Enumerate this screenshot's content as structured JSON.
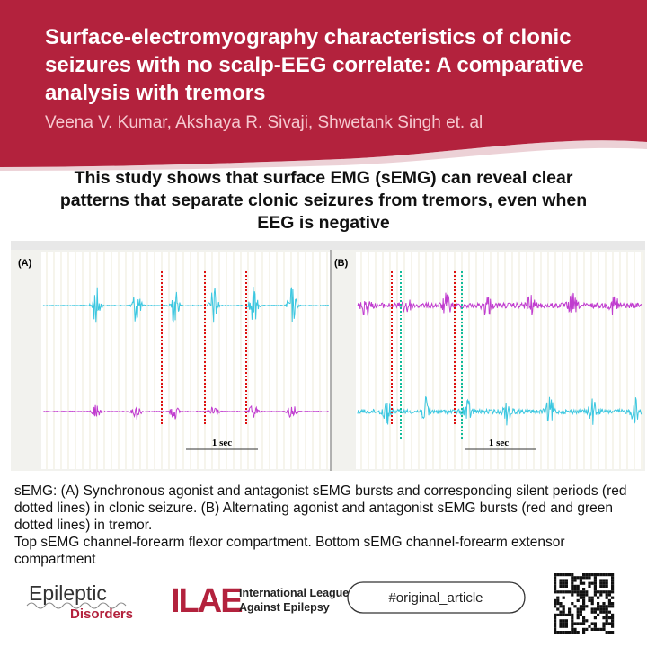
{
  "header": {
    "title": "Surface-electromyography characteristics of clonic seizures with no scalp-EEG correlate: A comparative analysis with tremors",
    "authors": "Veena V. Kumar, Akshaya R. Sivaji, Shwetank Singh et. al"
  },
  "summary": "This study shows that surface EMG (sEMG) can reveal clear patterns that separate clonic seizures from tremors, even when EEG is negative",
  "figure": {
    "panel_a_label": "(A)",
    "panel_b_label": "(B)",
    "scale_a": "1 sec",
    "scale_b": "1 sec"
  },
  "caption": [
    "sEMG: (A) Synchronous agonist and antagonist sEMG bursts and corresponding silent periods (red dotted lines) in clonic seizure.  (B) Alternating agonist and antagonist sEMG bursts (red and green dotted lines) in tremor.",
    "Top sEMG channel-forearm flexor compartment. Bottom sEMG channel-forearm extensor compartment"
  ],
  "footer": {
    "journal_line1": "Epileptic",
    "journal_line2": "Disorders",
    "ilae_abbr": "ILAE",
    "ilae_line1": "International League",
    "ilae_line2": "Against Epilepsy",
    "hashtag": "#original_article"
  }
}
